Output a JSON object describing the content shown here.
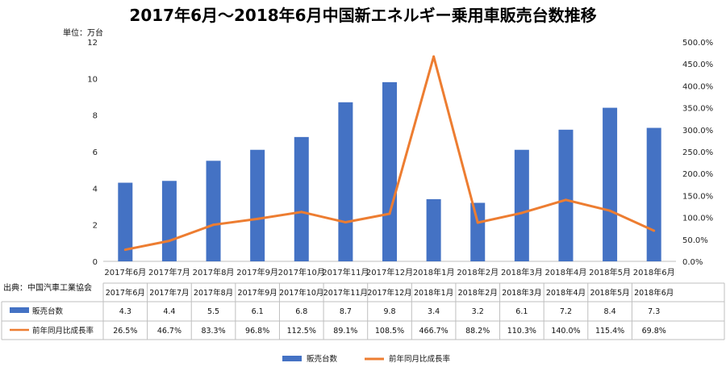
{
  "chart_data": {
    "type": "bar",
    "title": "2017年6月～2018年6月中国新エネルギー乗用車販売台数推移",
    "unit_label": "単位：万台",
    "source_label": "出典：中国汽車工業協会",
    "categories": [
      "2017年6月",
      "2017年7月",
      "2017年8月",
      "2017年9月",
      "2017年10月",
      "2017年11月",
      "2017年12月",
      "2018年1月",
      "2018年2月",
      "2018年3月",
      "2018年4月",
      "2018年5月",
      "2018年6月"
    ],
    "series": [
      {
        "name": "販売台数",
        "type": "bar",
        "axis": "left",
        "color": "#4472C4",
        "values": [
          4.3,
          4.4,
          5.5,
          6.1,
          6.8,
          8.7,
          9.8,
          3.4,
          3.2,
          6.1,
          7.2,
          8.4,
          7.3
        ],
        "labels": [
          "4.3",
          "4.4",
          "5.5",
          "6.1",
          "6.8",
          "8.7",
          "9.8",
          "3.4",
          "3.2",
          "6.1",
          "7.2",
          "8.4",
          "7.3"
        ]
      },
      {
        "name": "前年同月比成長率",
        "type": "line",
        "axis": "right",
        "color": "#ED7D31",
        "values": [
          26.5,
          46.7,
          83.3,
          96.8,
          112.5,
          89.1,
          108.5,
          466.7,
          88.2,
          110.3,
          140.0,
          115.4,
          69.8
        ],
        "labels": [
          "26.5%",
          "46.7%",
          "83.3%",
          "96.8%",
          "112.5%",
          "89.1%",
          "108.5%",
          "466.7%",
          "88.2%",
          "110.3%",
          "140.0%",
          "115.4%",
          "69.8%"
        ]
      }
    ],
    "y_left": {
      "min": 0,
      "max": 12,
      "ticks": [
        "0",
        "2",
        "4",
        "6",
        "8",
        "10",
        "12"
      ]
    },
    "y_right": {
      "min": 0,
      "max": 500,
      "ticks": [
        "0.0%",
        "50.0%",
        "100.0%",
        "150.0%",
        "200.0%",
        "250.0%",
        "300.0%",
        "350.0%",
        "400.0%",
        "450.0%",
        "500.0%"
      ]
    },
    "legend": [
      "販売台数",
      "前年同月比成長率"
    ]
  }
}
